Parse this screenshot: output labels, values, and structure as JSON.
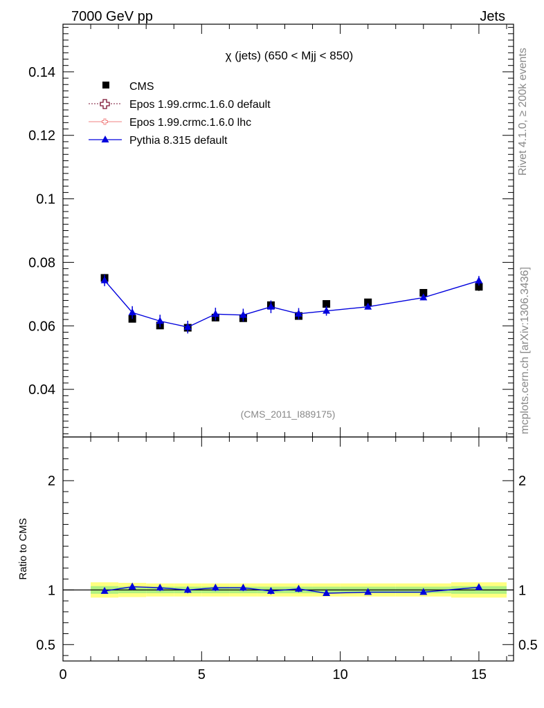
{
  "header": {
    "left": "7000 GeV pp",
    "right": "Jets"
  },
  "side_labels": {
    "rivet": "Rivet 4.1.0, ≥ 200k events",
    "mcplots": "mcplots.cern.ch [arXiv:1306.3436]"
  },
  "colors": {
    "cms": "#000000",
    "epos_default": "#7a1030",
    "epos_lhc": "#f08080",
    "pythia": "#0000dd",
    "band_outer": "#ffff80",
    "band_inner": "#b0f080"
  },
  "chart_data": {
    "type": "line",
    "title": "χ (jets) (650 < Mjj <  850)",
    "watermark": "(CMS_2011_I889175)",
    "xlim": [
      0,
      16.25
    ],
    "x_ticks": [
      "0",
      "5",
      "10",
      "15"
    ],
    "main_panel": {
      "ylim": [
        0.025,
        0.155
      ],
      "y_ticks": [
        "0.04",
        "0.06",
        "0.08",
        "0.1",
        "0.12",
        "0.14"
      ]
    },
    "ratio_panel": {
      "ylabel": "Ratio to CMS",
      "ylim": [
        0.35,
        2.4
      ],
      "y_ticks": [
        "0.5",
        "1",
        "2"
      ]
    },
    "x_bins": [
      [
        1,
        2
      ],
      [
        2,
        3
      ],
      [
        3,
        4
      ],
      [
        4,
        5
      ],
      [
        5,
        6
      ],
      [
        6,
        7
      ],
      [
        7,
        8
      ],
      [
        8,
        9
      ],
      [
        9,
        10
      ],
      [
        10,
        12
      ],
      [
        12,
        14
      ],
      [
        14,
        16
      ]
    ],
    "legend": [
      "CMS",
      "Epos 1.99.crmc.1.6.0 default",
      "Epos 1.99.crmc.1.6.0 lhc",
      "Pythia 8.315 default"
    ],
    "series": [
      {
        "name": "CMS",
        "x": [
          1.5,
          2.5,
          3.5,
          4.5,
          5.5,
          6.5,
          7.5,
          8.5,
          9.5,
          11,
          13,
          15
        ],
        "values": [
          0.0751,
          0.0622,
          0.0601,
          0.0594,
          0.0626,
          0.0624,
          0.0665,
          0.0631,
          0.0669,
          0.0674,
          0.0704,
          0.0723
        ],
        "errors": [
          0.0012,
          0.001,
          0.0009,
          0.0009,
          0.001,
          0.001,
          0.0011,
          0.001,
          0.0011,
          0.0011,
          0.0012,
          0.0013
        ]
      },
      {
        "name": "Pythia 8.315 default",
        "x": [
          1.5,
          2.5,
          3.5,
          4.5,
          5.5,
          6.5,
          7.5,
          8.5,
          9.5,
          11,
          13,
          15
        ],
        "values": [
          0.0743,
          0.0642,
          0.0615,
          0.0596,
          0.0637,
          0.0634,
          0.066,
          0.0638,
          0.0647,
          0.066,
          0.0689,
          0.0742
        ],
        "errors": [
          0.0018,
          0.002,
          0.002,
          0.002,
          0.002,
          0.002,
          0.002,
          0.0018,
          0.0015,
          0.0008,
          0.0008,
          0.0015
        ]
      }
    ],
    "ratio": {
      "x": [
        1.5,
        2.5,
        3.5,
        4.5,
        5.5,
        6.5,
        7.5,
        8.5,
        9.5,
        11,
        13,
        15
      ],
      "values": [
        0.99,
        1.03,
        1.02,
        1.0,
        1.02,
        1.02,
        0.99,
        1.01,
        0.97,
        0.98,
        0.98,
        1.025
      ],
      "errors": [
        0.024,
        0.03,
        0.03,
        0.03,
        0.03,
        0.03,
        0.03,
        0.03,
        0.02,
        0.012,
        0.012,
        0.02
      ],
      "band_outer": [
        0.07,
        0.065,
        0.06,
        0.06,
        0.06,
        0.06,
        0.06,
        0.06,
        0.06,
        0.06,
        0.06,
        0.07
      ],
      "band_inner": [
        0.035,
        0.03,
        0.03,
        0.03,
        0.03,
        0.03,
        0.03,
        0.03,
        0.03,
        0.03,
        0.03,
        0.035
      ]
    }
  }
}
